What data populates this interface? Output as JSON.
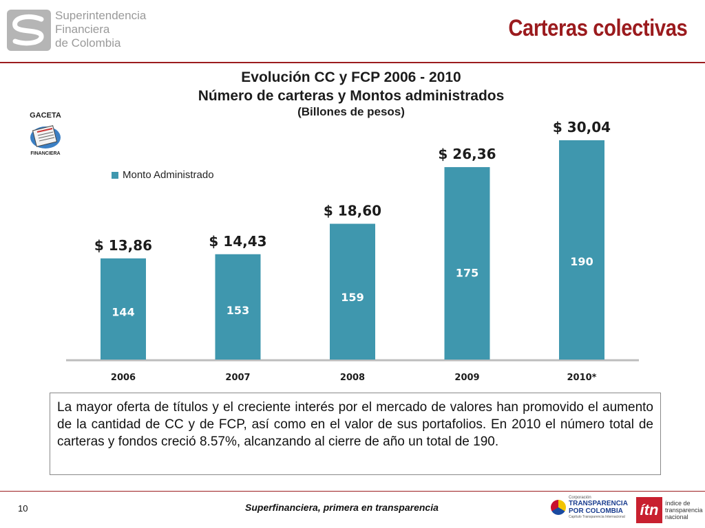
{
  "header": {
    "org_name_lines": [
      "Superintendencia",
      "Financiera",
      "de Colombia"
    ],
    "slide_title": "Carteras colectivas",
    "accent_color": "#9b1b1e"
  },
  "chart_data": {
    "type": "bar",
    "title": "Evolución CC y FCP 2006 - 2010",
    "subtitle": "Número de carteras  y  Montos administrados",
    "units_note": "(Billones de pesos)",
    "categories": [
      "2006",
      "2007",
      "2008",
      "2009",
      "2010*"
    ],
    "series": [
      {
        "name": "Monto Administrado",
        "values": [
          13.86,
          14.43,
          18.6,
          26.36,
          30.04
        ],
        "value_labels": [
          "$ 13,86",
          "$ 14,43",
          "$ 18,60",
          "$ 26,36",
          "$ 30,04"
        ],
        "color": "#3f97ae"
      }
    ],
    "bar_inner_labels": [
      "144",
      "153",
      "159",
      "175",
      "190"
    ],
    "legend_position": "top-left",
    "grid": false,
    "ylim": [
      0,
      30.04
    ]
  },
  "gaceta": {
    "top_label": "GACETA",
    "bottom_label": "FINANCIERA"
  },
  "summary_text": "La mayor oferta de títulos y el creciente interés por el mercado de valores han promovido el aumento de la cantidad de CC y de FCP, así como en el valor de sus portafolios. En 2010 el número total de carteras y fondos creció 8.57%, alcanzando al cierre de año un total de 190.",
  "footer": {
    "page_number": "10",
    "tagline": "Superfinanciera, primera en transparencia",
    "tpc_small": "Corporación",
    "tpc_line1": "TRANSPARENCIA",
    "tpc_line2": "POR COLOMBIA",
    "tpc_sub": "Capítulo Transparencia Internacional",
    "itn_mark": "ítn",
    "itn_lines": [
      "índice de",
      "transparencia",
      "nacional"
    ]
  }
}
